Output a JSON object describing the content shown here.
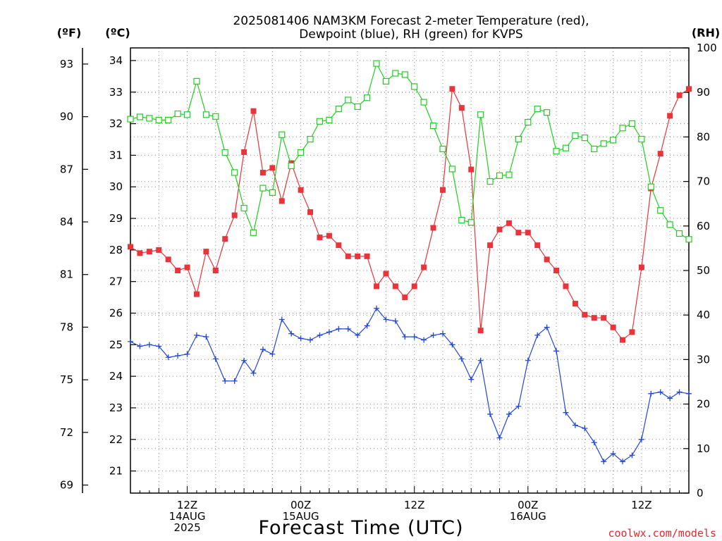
{
  "chart_data": {
    "type": "line",
    "title_lines": [
      "2025081406 NAM3KM Forecast 2-meter Temperature (red),",
      "Dewpoint (blue), RH (green) for KVPS"
    ],
    "xlabel": "Forecast Time (UTC)",
    "credit": "coolwx.com/models",
    "axes": {
      "left_outer": {
        "unit_label": "(ºF)",
        "ticks": [
          "69",
          "72",
          "75",
          "78",
          "81",
          "84",
          "87",
          "90",
          "93"
        ]
      },
      "left_inner": {
        "unit_label": "(ºC)",
        "range": [
          20.3,
          34.4
        ],
        "ticks": [
          "21",
          "22",
          "23",
          "24",
          "25",
          "26",
          "27",
          "28",
          "29",
          "30",
          "31",
          "32",
          "33",
          "34"
        ]
      },
      "right": {
        "unit_label": "(RH)",
        "range": [
          0,
          100
        ],
        "ticks": [
          "0",
          "10",
          "20",
          "30",
          "40",
          "50",
          "60",
          "70",
          "80",
          "90",
          "100"
        ]
      },
      "x_range_hours": [
        7,
        66
      ]
    },
    "x_tick_labels": [
      {
        "hour": 13,
        "lines": [
          "12Z",
          "14AUG",
          "2025"
        ]
      },
      {
        "hour": 25,
        "lines": [
          "00Z",
          "15AUG"
        ]
      },
      {
        "hour": 37,
        "lines": [
          "12Z"
        ]
      },
      {
        "hour": 49,
        "lines": [
          "00Z",
          "16AUG"
        ]
      },
      {
        "hour": 61,
        "lines": [
          "12Z"
        ]
      }
    ],
    "grid": true,
    "series": [
      {
        "name": "Temperature",
        "unit": "C",
        "color": "#e8343a",
        "marker": "filled-square",
        "hours": [
          7,
          8,
          9,
          10,
          11,
          12,
          13,
          14,
          15,
          16,
          17,
          18,
          19,
          20,
          21,
          22,
          23,
          24,
          25,
          26,
          27,
          28,
          29,
          30,
          31,
          32,
          33,
          34,
          35,
          36,
          37,
          38,
          39,
          40,
          41,
          42,
          43,
          44,
          45,
          46,
          47,
          48,
          49,
          50,
          51,
          52,
          53,
          54,
          55,
          56,
          57,
          58,
          59,
          60,
          61,
          62,
          63,
          64,
          65,
          66
        ],
        "values": [
          28.1,
          27.9,
          27.95,
          28.0,
          27.7,
          27.35,
          27.45,
          26.6,
          27.95,
          27.35,
          28.35,
          29.1,
          31.1,
          32.4,
          30.45,
          30.6,
          29.55,
          30.75,
          29.9,
          29.2,
          28.4,
          28.45,
          28.15,
          27.8,
          27.8,
          27.8,
          26.85,
          27.25,
          26.85,
          26.5,
          26.85,
          27.45,
          28.7,
          29.9,
          33.1,
          32.5,
          30.55,
          25.45,
          28.15,
          28.65,
          28.85,
          28.55,
          28.55,
          28.15,
          27.7,
          27.35,
          26.85,
          26.3,
          25.95,
          25.85,
          25.85,
          25.55,
          25.15,
          25.4,
          27.45,
          29.95,
          31.05,
          32.25,
          32.9,
          33.1
        ]
      },
      {
        "name": "Dewpoint",
        "unit": "C",
        "color": "#2147d9",
        "marker": "plus",
        "hours": [
          7,
          8,
          9,
          10,
          11,
          12,
          13,
          14,
          15,
          16,
          17,
          18,
          19,
          20,
          21,
          22,
          23,
          24,
          25,
          26,
          27,
          28,
          29,
          30,
          31,
          32,
          33,
          34,
          35,
          36,
          37,
          38,
          39,
          40,
          41,
          42,
          43,
          44,
          45,
          46,
          47,
          48,
          49,
          50,
          51,
          52,
          53,
          54,
          55,
          56,
          57,
          58,
          59,
          60,
          61,
          62,
          63,
          64,
          65,
          66
        ],
        "values": [
          25.1,
          24.95,
          25.0,
          24.95,
          24.6,
          24.65,
          24.7,
          25.3,
          25.25,
          24.55,
          23.85,
          23.85,
          24.5,
          24.1,
          24.85,
          24.7,
          25.8,
          25.35,
          25.2,
          25.15,
          25.3,
          25.4,
          25.5,
          25.5,
          25.3,
          25.6,
          26.15,
          25.8,
          25.75,
          25.25,
          25.25,
          25.15,
          25.3,
          25.35,
          25.0,
          24.55,
          23.9,
          24.5,
          22.8,
          22.05,
          22.8,
          23.05,
          24.5,
          25.3,
          25.55,
          24.8,
          22.85,
          22.45,
          22.35,
          21.9,
          21.3,
          21.55,
          21.3,
          21.5,
          22.0,
          23.45,
          23.5,
          23.3,
          23.5,
          23.45
        ]
      },
      {
        "name": "RH",
        "unit": "%",
        "color": "#1fcf1f",
        "marker": "open-square",
        "hours": [
          7,
          8,
          9,
          10,
          11,
          12,
          13,
          14,
          15,
          16,
          17,
          18,
          19,
          20,
          21,
          22,
          23,
          24,
          25,
          26,
          27,
          28,
          29,
          30,
          31,
          32,
          33,
          34,
          35,
          36,
          37,
          38,
          39,
          40,
          41,
          42,
          43,
          44,
          45,
          46,
          47,
          48,
          49,
          50,
          51,
          52,
          53,
          54,
          55,
          56,
          57,
          58,
          59,
          60,
          61,
          62,
          63,
          64,
          65,
          66
        ],
        "values": [
          84,
          84.5,
          84.2,
          83.8,
          83.8,
          85.2,
          85,
          92.5,
          85,
          84.6,
          76.5,
          72,
          64,
          58.5,
          68.5,
          67.5,
          80.5,
          73.5,
          76.5,
          79.5,
          83.5,
          83.8,
          86.3,
          88.3,
          86.8,
          88.8,
          96.5,
          92.5,
          94.3,
          94,
          91.3,
          87.8,
          82.5,
          77.3,
          72.8,
          61.3,
          60.8,
          85,
          70,
          71.3,
          71.5,
          79.5,
          83.3,
          86.3,
          85.5,
          76.8,
          77.5,
          80.3,
          79.8,
          77.3,
          78.5,
          79.3,
          82,
          83,
          79.5,
          68.8,
          63.5,
          60.3,
          58.3,
          57
        ]
      }
    ]
  }
}
